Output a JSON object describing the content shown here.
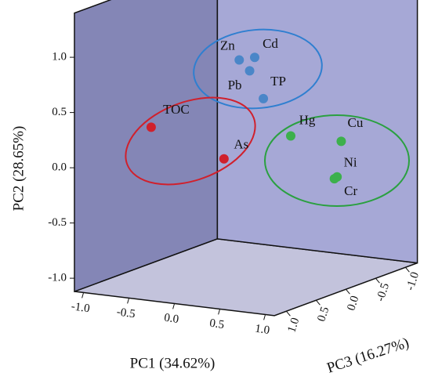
{
  "chart_data": {
    "type": "scatter3d",
    "xlabel": "PC1 (34.62%)",
    "ylabel": "PC2 (28.65%)",
    "zlabel": "PC3 (16.27%)",
    "xlim": [
      -1.1,
      1.1
    ],
    "ylim": [
      -1.12,
      1.4
    ],
    "zlim": [
      -1.2,
      1.2
    ],
    "xticks": [
      {
        "value": -1,
        "label": "-1.0"
      },
      -0.5,
      {
        "value": 0,
        "label": "0.0"
      },
      0.5,
      {
        "value": 1,
        "label": "1.0"
      }
    ],
    "yticks": [
      {
        "value": -1,
        "label": "-1.0"
      },
      -0.5,
      {
        "value": 0,
        "label": "0.0"
      },
      0.5,
      {
        "value": 1,
        "label": "1.0"
      }
    ],
    "zticks": [
      {
        "value": 1,
        "label": "1.0"
      },
      0.5,
      {
        "value": 0,
        "label": "0.0"
      },
      -0.5,
      {
        "value": -1,
        "label": "-1.0"
      }
    ],
    "series": [
      {
        "color": "#4a86c8",
        "labels": [
          "Zn",
          "Cd",
          "Pb",
          "TP"
        ],
        "x": [
          -0.27,
          -0.1,
          -0.09,
          -0.07
        ],
        "y": [
          0.76,
          0.8,
          0.7,
          0.41
        ],
        "z": [
          -0.3,
          -0.3,
          -0.2,
          -0.4
        ]
      },
      {
        "color": "#d0202c",
        "labels": [
          "TOC",
          "As"
        ],
        "x": [
          -0.78,
          -0.11
        ],
        "y": [
          0.24,
          -0.02
        ],
        "z": [
          0.4,
          0.2
        ]
      },
      {
        "color": "#3cb04c",
        "labels": [
          "Hg",
          "Cu",
          "Ni",
          "Cr"
        ],
        "x": [
          0.1,
          0.59,
          0.61,
          0.58
        ],
        "y": [
          0.05,
          0.03,
          -0.27,
          -0.29
        ],
        "z": [
          -0.6,
          -0.7,
          -0.6,
          -0.6
        ]
      }
    ]
  }
}
